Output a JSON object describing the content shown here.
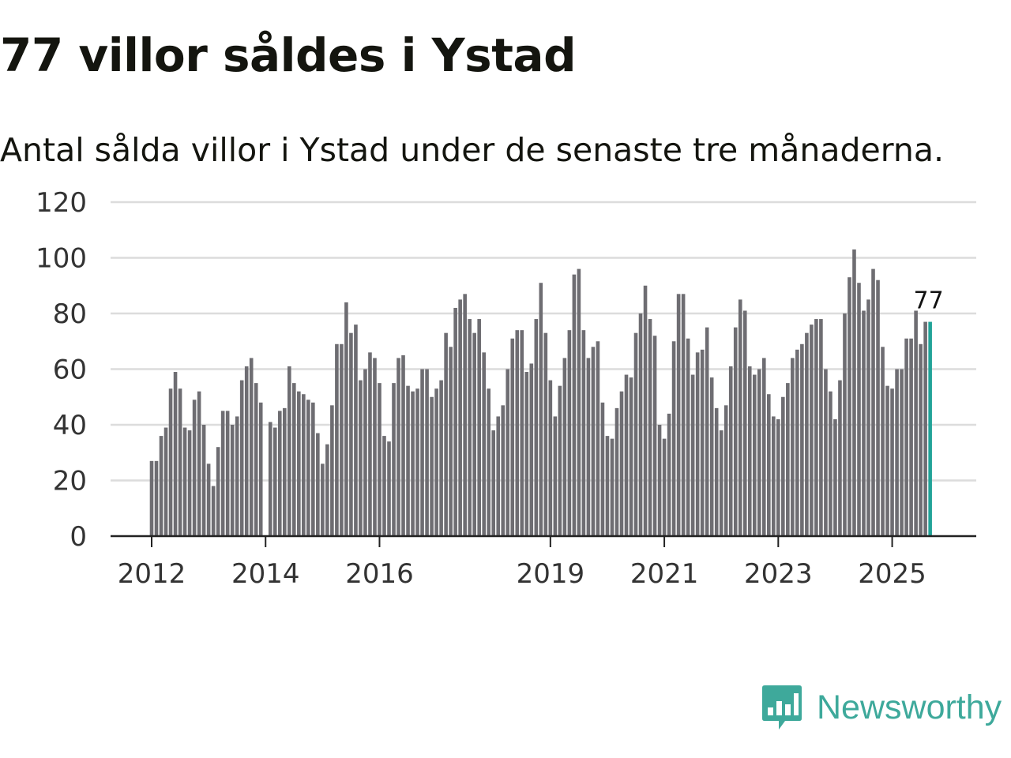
{
  "title": "77 villor såldes i Ystad",
  "subtitle": "Antal sålda villor i Ystad under de senaste tre månaderna.",
  "brand": {
    "name": "Newsworthy"
  },
  "colors": {
    "bar": "#6e6d72",
    "highlight": "#22a398",
    "grid": "#dcdcdc",
    "axis": "#222222",
    "brand": "#3ea99b"
  },
  "chart_data": {
    "type": "bar",
    "title": "77 villor såldes i Ystad",
    "xlabel": "",
    "ylabel": "",
    "ylim": [
      0,
      120
    ],
    "yticks": [
      0,
      20,
      40,
      60,
      80,
      100,
      120
    ],
    "grid": true,
    "start": {
      "year": 2012,
      "month": 1
    },
    "xtick_labels": [
      "2012",
      "2014",
      "2016",
      "2019",
      "2021",
      "2023",
      "2025"
    ],
    "highlight_label": "77",
    "values": [
      27,
      27,
      36,
      39,
      53,
      59,
      53,
      39,
      38,
      49,
      52,
      40,
      26,
      18,
      32,
      45,
      45,
      40,
      43,
      56,
      61,
      64,
      55,
      48,
      0,
      41,
      39,
      45,
      46,
      61,
      55,
      52,
      51,
      49,
      48,
      37,
      26,
      33,
      47,
      69,
      69,
      84,
      73,
      76,
      56,
      60,
      66,
      64,
      55,
      36,
      34,
      55,
      64,
      65,
      54,
      52,
      53,
      60,
      60,
      50,
      53,
      56,
      73,
      68,
      82,
      85,
      87,
      78,
      73,
      78,
      66,
      53,
      38,
      43,
      47,
      60,
      71,
      74,
      74,
      59,
      62,
      78,
      91,
      73,
      56,
      43,
      54,
      64,
      74,
      94,
      96,
      74,
      64,
      68,
      70,
      48,
      36,
      35,
      46,
      52,
      58,
      57,
      73,
      80,
      90,
      78,
      72,
      40,
      35,
      44,
      70,
      87,
      87,
      71,
      58,
      66,
      67,
      75,
      57,
      46,
      38,
      47,
      61,
      75,
      85,
      81,
      61,
      58,
      60,
      64,
      51,
      43,
      42,
      50,
      55,
      64,
      67,
      69,
      73,
      76,
      78,
      78,
      60,
      52,
      42,
      56,
      80,
      93,
      103,
      91,
      81,
      85,
      96,
      92,
      68,
      54,
      53,
      60,
      60,
      71,
      71,
      81,
      69,
      77,
      77
    ]
  }
}
